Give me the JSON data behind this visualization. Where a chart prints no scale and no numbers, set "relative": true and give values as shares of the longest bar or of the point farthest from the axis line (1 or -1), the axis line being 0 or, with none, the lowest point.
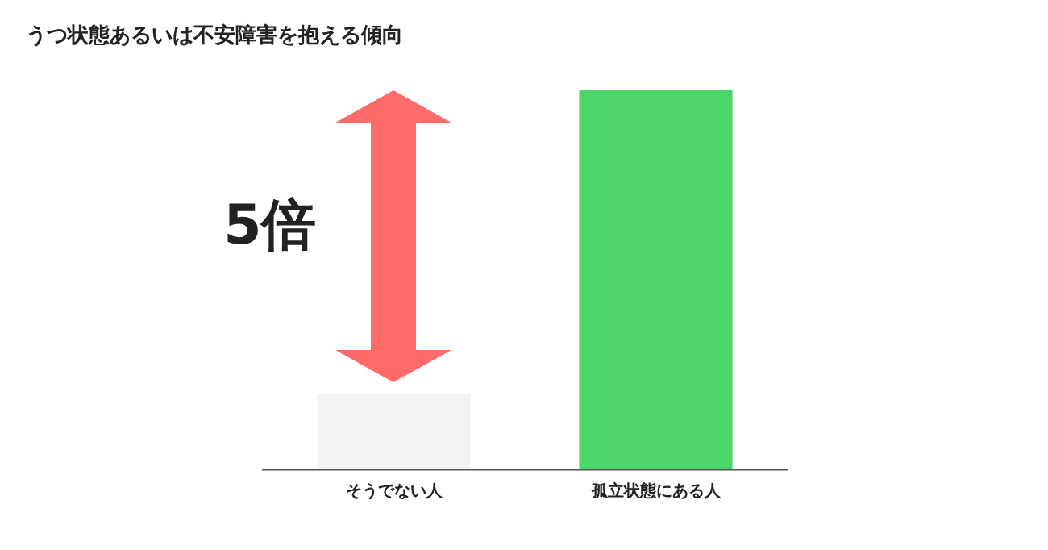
{
  "chart_data": {
    "type": "bar",
    "title": "うつ状態あるいは不安障害を抱える傾向",
    "categories": [
      "そうでない人",
      "孤立状態にある人"
    ],
    "values": [
      0.2,
      1
    ],
    "colors": [
      "#f3f3f5",
      "#4cd66a"
    ],
    "relative": true,
    "grid": false,
    "legend": false,
    "annotations": [
      "5倍"
    ]
  }
}
